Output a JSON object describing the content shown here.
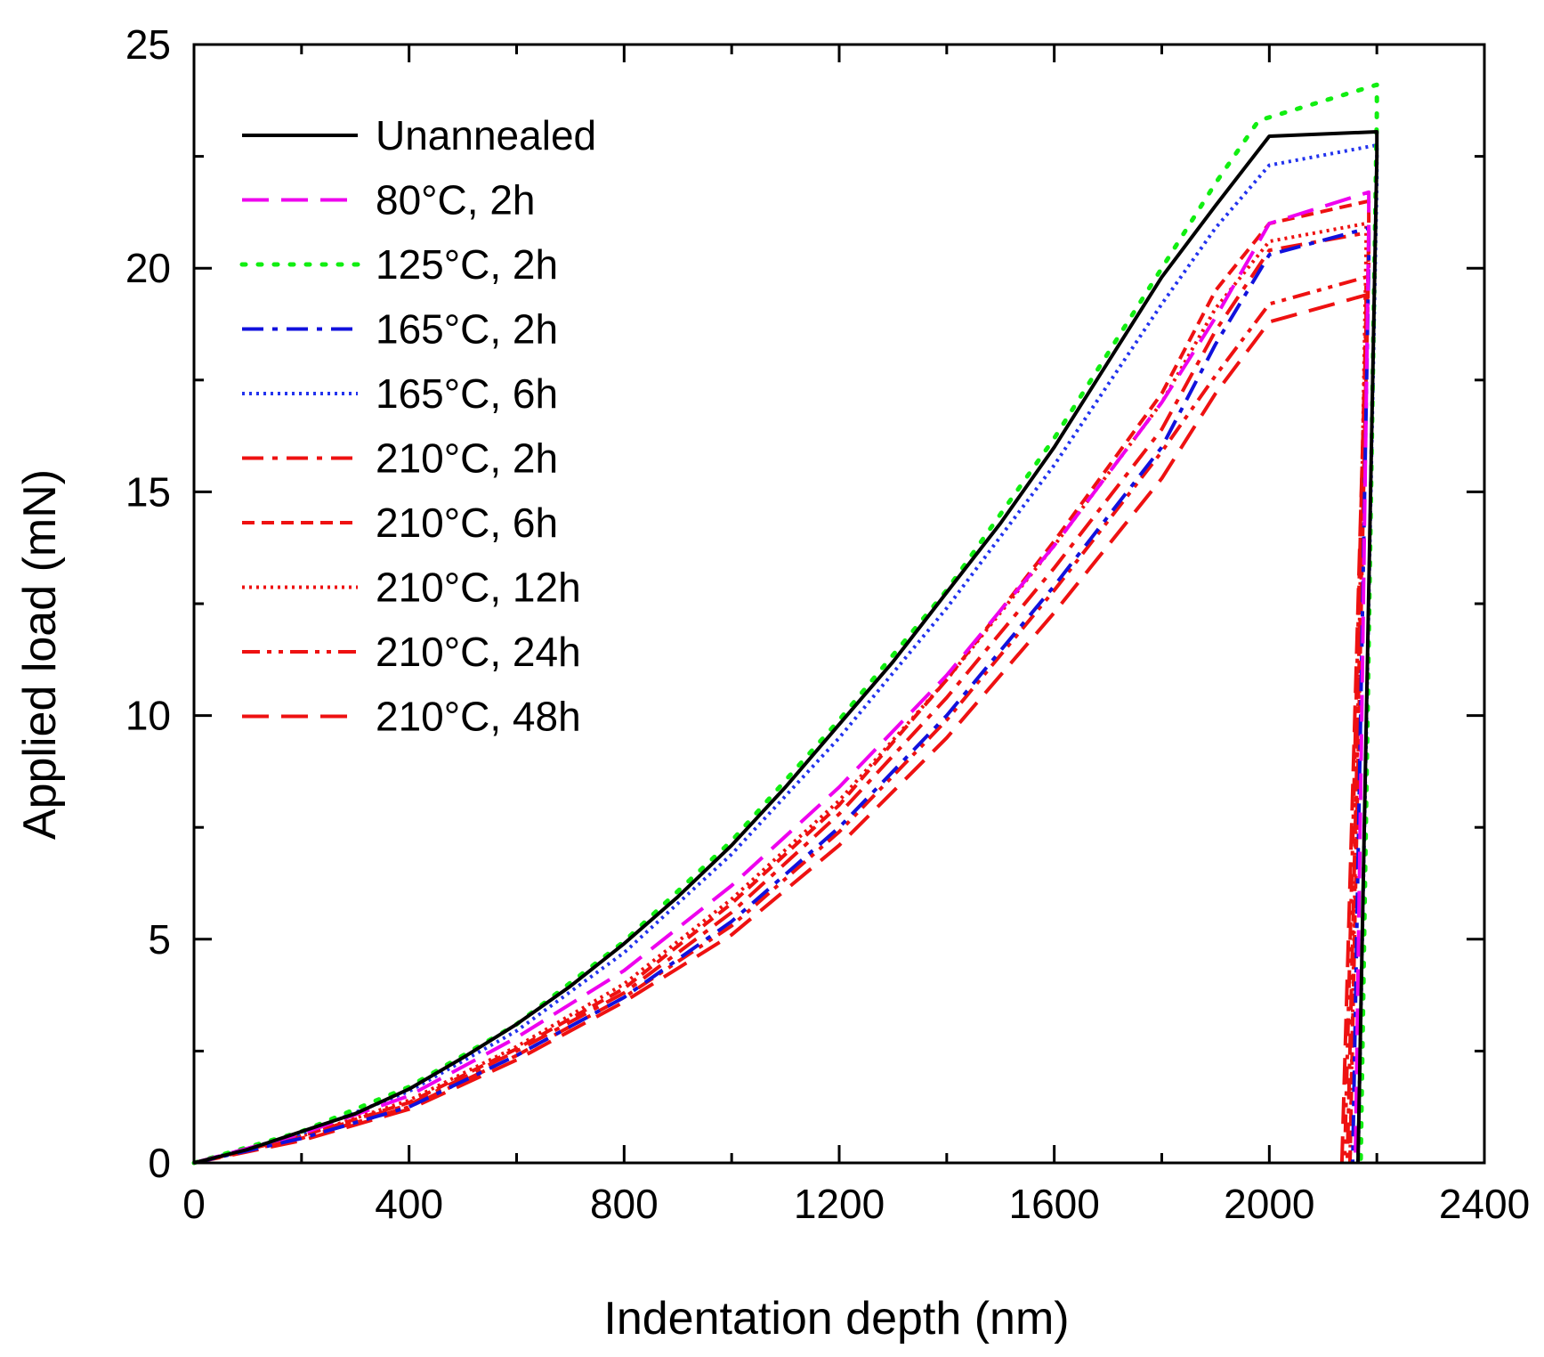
{
  "chart_data": {
    "type": "line",
    "title": "",
    "xlabel": "Indentation depth (nm)",
    "ylabel": "Applied load (mN)",
    "xlim": [
      0,
      2400
    ],
    "ylim": [
      0,
      25
    ],
    "xticks": [
      "0",
      "400",
      "800",
      "1200",
      "1600",
      "2000",
      "2400"
    ],
    "yticks": [
      "0",
      "5",
      "10",
      "15",
      "20",
      "25"
    ],
    "legend_position": "top-left",
    "series": [
      {
        "name": "Unannealed",
        "color": "#000000",
        "dash": "solid",
        "x": [
          0,
          100,
          200,
          300,
          400,
          500,
          600,
          700,
          800,
          900,
          1000,
          1100,
          1200,
          1300,
          1400,
          1500,
          1600,
          1700,
          1800,
          1900,
          2000,
          2200,
          2200,
          2165
        ],
        "y": [
          0,
          0.3,
          0.7,
          1.1,
          1.65,
          2.35,
          3.1,
          3.95,
          4.9,
          5.95,
          7.1,
          8.4,
          9.8,
          11.2,
          12.75,
          14.3,
          16.0,
          17.9,
          19.8,
          21.4,
          22.95,
          23.05,
          22.5,
          0
        ],
        "peak_load": 23.0
      },
      {
        "name": "80°C, 2h",
        "color": "#ee00ee",
        "dash": "long-dash",
        "x": [
          0,
          200,
          400,
          600,
          800,
          1000,
          1200,
          1400,
          1600,
          1800,
          1900,
          2000,
          2185,
          2185,
          2160
        ],
        "y": [
          0,
          0.65,
          1.5,
          2.8,
          4.3,
          6.2,
          8.4,
          10.9,
          13.8,
          17.0,
          18.9,
          21.0,
          21.7,
          21.0,
          0
        ],
        "peak_load": 21.7
      },
      {
        "name": "125°C, 2h",
        "color": "#11ee11",
        "dash": "dotted",
        "x": [
          0,
          200,
          400,
          600,
          800,
          1000,
          1200,
          1400,
          1600,
          1800,
          1900,
          1980,
          2200,
          2200,
          2170
        ],
        "y": [
          0,
          0.7,
          1.7,
          3.1,
          4.95,
          7.2,
          9.9,
          12.8,
          16.2,
          20.0,
          21.9,
          23.3,
          24.1,
          23.5,
          0
        ],
        "peak_load": 24.1
      },
      {
        "name": "165°C, 2h",
        "color": "#1111dd",
        "dash": "dash-dot",
        "x": [
          0,
          200,
          400,
          600,
          800,
          1000,
          1200,
          1400,
          1600,
          1800,
          1900,
          2000,
          2185,
          2185,
          2155
        ],
        "y": [
          0,
          0.55,
          1.25,
          2.4,
          3.7,
          5.4,
          7.5,
          10.0,
          12.9,
          16.0,
          18.3,
          20.3,
          20.9,
          20.2,
          0
        ],
        "peak_load": 20.9
      },
      {
        "name": "165°C, 6h",
        "color": "#2233ee",
        "dash": "fine-dot",
        "x": [
          0,
          200,
          400,
          600,
          800,
          1000,
          1200,
          1400,
          1600,
          1800,
          1900,
          2000,
          2200,
          2200,
          2165
        ],
        "y": [
          0,
          0.65,
          1.6,
          2.95,
          4.7,
          6.9,
          9.5,
          12.4,
          15.6,
          19.2,
          20.9,
          22.3,
          22.75,
          22.0,
          0
        ],
        "peak_load": 22.75
      },
      {
        "name": "210°C, 2h",
        "color": "#ee1111",
        "dash": "dash-dot",
        "x": [
          0,
          200,
          400,
          600,
          800,
          1000,
          1200,
          1400,
          1600,
          1800,
          1900,
          2000,
          2185,
          2185,
          2145
        ],
        "y": [
          0,
          0.6,
          1.3,
          2.5,
          3.8,
          5.6,
          7.8,
          10.4,
          13.3,
          16.4,
          18.6,
          20.4,
          20.8,
          20.1,
          0
        ],
        "peak_load": 20.8
      },
      {
        "name": "210°C, 6h",
        "color": "#ee1111",
        "dash": "short-dash",
        "x": [
          0,
          200,
          400,
          600,
          800,
          1000,
          1200,
          1400,
          1600,
          1800,
          1900,
          2000,
          2185,
          2185,
          2150
        ],
        "y": [
          0,
          0.6,
          1.35,
          2.55,
          3.9,
          5.8,
          8.0,
          10.8,
          13.9,
          17.2,
          19.5,
          21.0,
          21.5,
          20.8,
          0
        ],
        "peak_load": 21.5
      },
      {
        "name": "210°C, 12h",
        "color": "#ee1111",
        "dash": "fine-dot",
        "x": [
          0,
          200,
          400,
          600,
          800,
          1000,
          1200,
          1400,
          1600,
          1800,
          1900,
          2000,
          2180,
          2180,
          2150
        ],
        "y": [
          0,
          0.6,
          1.4,
          2.6,
          4.0,
          5.9,
          8.1,
          10.8,
          13.8,
          17.0,
          19.1,
          20.6,
          21.0,
          20.4,
          0
        ],
        "peak_load": 21.0
      },
      {
        "name": "210°C, 24h",
        "color": "#ee1111",
        "dash": "dash-dot-dot",
        "x": [
          0,
          200,
          400,
          600,
          800,
          1000,
          1200,
          1400,
          1600,
          1800,
          1900,
          2000,
          2180,
          2180,
          2140
        ],
        "y": [
          0,
          0.55,
          1.25,
          2.4,
          3.7,
          5.3,
          7.4,
          9.9,
          12.8,
          15.9,
          17.6,
          19.2,
          19.8,
          19.1,
          0
        ],
        "peak_load": 19.8
      },
      {
        "name": "210°C, 48h",
        "color": "#ee1111",
        "dash": "long-dash",
        "x": [
          0,
          200,
          400,
          600,
          800,
          1000,
          1200,
          1400,
          1600,
          1800,
          1900,
          2000,
          2180,
          2180,
          2135
        ],
        "y": [
          0,
          0.5,
          1.2,
          2.3,
          3.6,
          5.1,
          7.1,
          9.5,
          12.3,
          15.3,
          17.2,
          18.8,
          19.4,
          18.7,
          0
        ],
        "peak_load": 19.4
      }
    ]
  }
}
